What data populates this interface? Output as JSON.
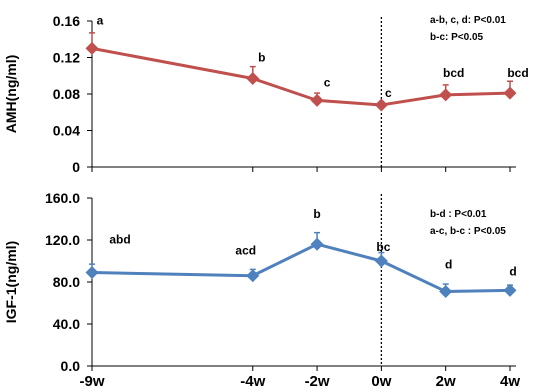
{
  "chart_data": [
    {
      "type": "line",
      "ylabel": "AMH(ng/ml)",
      "x_positions": [
        -9,
        -4,
        -2,
        0,
        2,
        4
      ],
      "categories": [
        "-9w",
        "-4w",
        "-2w",
        "0w",
        "2w",
        "4w"
      ],
      "ylim": [
        0,
        0.16
      ],
      "yticks": [
        0,
        0.04,
        0.08,
        0.12,
        0.16
      ],
      "ytick_labels": [
        "0",
        "0.04",
        "0.08",
        "0.12",
        "0.16"
      ],
      "series": [
        {
          "color": "#c0504d",
          "marker": "diamond",
          "values": [
            0.13,
            0.097,
            0.073,
            0.068,
            0.079,
            0.081
          ],
          "error_up": [
            0.017,
            0.013,
            0.008,
            0.0,
            0.011,
            0.013
          ],
          "labels": [
            "a",
            "b",
            "c",
            "c",
            "bcd",
            "bcd"
          ]
        }
      ],
      "annotations": [
        "a-b, c, d: P<0.01",
        "b-c: P<0.05"
      ],
      "vline_at": 0
    },
    {
      "type": "line",
      "ylabel": "IGF-1(ng/ml)",
      "x_positions": [
        -9,
        -4,
        -2,
        0,
        2,
        4
      ],
      "categories": [
        "-9w",
        "-4w",
        "-2w",
        "0w",
        "2w",
        "4w"
      ],
      "ylim": [
        0,
        160
      ],
      "yticks": [
        0,
        40,
        80,
        120,
        160
      ],
      "ytick_labels": [
        "0.0",
        "40.0",
        "80.0",
        "120.0",
        "160.0"
      ],
      "series": [
        {
          "color": "#4f81bd",
          "marker": "diamond",
          "values": [
            89,
            86,
            116,
            100,
            71,
            72
          ],
          "error_up": [
            8,
            6,
            11,
            8,
            7,
            5
          ],
          "labels": [
            "abd",
            "acd",
            "b",
            "bc",
            "d",
            "d"
          ]
        }
      ],
      "annotations": [
        "b-d : P<0.01",
        "a-c, b-c : P<0.05"
      ],
      "vline_at": 0
    }
  ]
}
